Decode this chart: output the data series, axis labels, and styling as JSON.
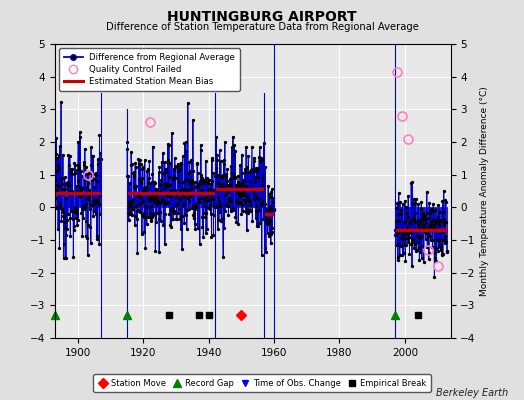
{
  "title": "HUNTINGBURG AIRPORT",
  "subtitle": "Difference of Station Temperature Data from Regional Average",
  "ylabel": "Monthly Temperature Anomaly Difference (°C)",
  "xlim": [
    1893,
    2014
  ],
  "ylim": [
    -4,
    5
  ],
  "yticks": [
    -4,
    -3,
    -2,
    -1,
    0,
    1,
    2,
    3,
    4,
    5
  ],
  "xticks": [
    1900,
    1920,
    1940,
    1960,
    1980,
    2000
  ],
  "bg_color": "#e0e0e0",
  "plot_bg_color": "#e8e8e8",
  "grid_color": "#ffffff",
  "line_color": "#0000cc",
  "dot_color": "#000000",
  "bias_color": "#cc0000",
  "qc_color": "#ff80c0",
  "watermark": "Berkeley Earth",
  "segments": [
    {
      "start": 1893,
      "end": 1907,
      "bias": 0.45,
      "noise": 0.85
    },
    {
      "start": 1915,
      "end": 1942,
      "bias": 0.45,
      "noise": 0.7
    },
    {
      "start": 1942,
      "end": 1957,
      "bias": 0.55,
      "noise": 0.7
    },
    {
      "start": 1957,
      "end": 1960,
      "bias": -0.2,
      "noise": 0.7
    },
    {
      "start": 1997,
      "end": 2013,
      "bias": -0.7,
      "noise": 0.55
    }
  ],
  "bias_lines": [
    {
      "start": 1893,
      "end": 1907,
      "val": 0.45
    },
    {
      "start": 1915,
      "end": 1942,
      "val": 0.45
    },
    {
      "start": 1942,
      "end": 1957,
      "val": 0.55
    },
    {
      "start": 1957,
      "end": 1960,
      "val": -0.2
    },
    {
      "start": 1997,
      "end": 2013,
      "val": -0.7
    }
  ],
  "gap_verticals": [
    {
      "x": 1907,
      "ybot": -4.0,
      "ytop": 3.5
    },
    {
      "x": 1915,
      "ybot": -4.0,
      "ytop": 3.0
    },
    {
      "x": 1942,
      "ybot": -4.0,
      "ytop": 3.5
    },
    {
      "x": 1957,
      "ybot": -4.0,
      "ytop": 3.5
    },
    {
      "x": 1960,
      "ybot": -4.0,
      "ytop": 5.0
    },
    {
      "x": 1997,
      "ybot": -4.0,
      "ytop": 5.0
    }
  ],
  "qc_failed": [
    {
      "year": 1903,
      "val": 1.0
    },
    {
      "year": 1922,
      "val": 2.6
    },
    {
      "year": 1997.5,
      "val": 4.15
    },
    {
      "year": 1999,
      "val": 2.8
    },
    {
      "year": 2001,
      "val": 2.1
    },
    {
      "year": 2007,
      "val": -1.3
    },
    {
      "year": 2010,
      "val": -1.8
    }
  ],
  "event_marker_y": -3.3,
  "station_moves": [
    1950
  ],
  "record_gaps": [
    1893,
    1915,
    1997
  ],
  "obs_changes": [],
  "empirical_breaks": [
    1928,
    1937,
    1940,
    2004
  ],
  "anno_yline": -3.3,
  "bottom_legend_items": [
    {
      "label": "Station Move",
      "color": "red",
      "marker": "D"
    },
    {
      "label": "Record Gap",
      "color": "green",
      "marker": "^"
    },
    {
      "label": "Time of Obs. Change",
      "color": "blue",
      "marker": "v"
    },
    {
      "label": "Empirical Break",
      "color": "black",
      "marker": "s"
    }
  ]
}
